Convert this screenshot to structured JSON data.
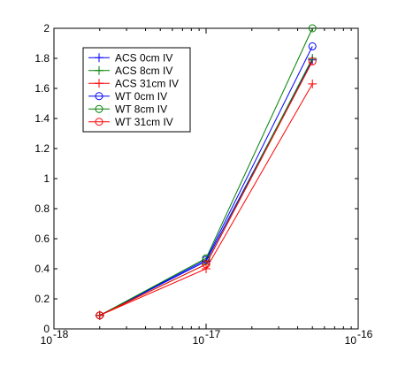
{
  "chart_data": {
    "type": "line",
    "title": "",
    "xlabel": "",
    "ylabel": "",
    "x_scale": "log",
    "xlim": [
      1e-18,
      1e-16
    ],
    "ylim": [
      0,
      2
    ],
    "grid": false,
    "legend_position": "top-left",
    "x_ticks": [
      {
        "value": 1e-18,
        "base": "10",
        "exp": "-18"
      },
      {
        "value": 1e-17,
        "base": "10",
        "exp": "-17"
      },
      {
        "value": 1e-16,
        "base": "10",
        "exp": "-16"
      }
    ],
    "y_ticks": [
      {
        "value": 0,
        "label": "0"
      },
      {
        "value": 0.2,
        "label": "0.2"
      },
      {
        "value": 0.4,
        "label": "0.4"
      },
      {
        "value": 0.6,
        "label": "0.6"
      },
      {
        "value": 0.8,
        "label": "0.8"
      },
      {
        "value": 1.0,
        "label": "1"
      },
      {
        "value": 1.2,
        "label": "1.2"
      },
      {
        "value": 1.4,
        "label": "1.4"
      },
      {
        "value": 1.6,
        "label": "1.6"
      },
      {
        "value": 1.8,
        "label": "1.8"
      },
      {
        "value": 2.0,
        "label": "2"
      }
    ],
    "x": [
      2e-18,
      1e-17,
      5e-17
    ],
    "series": [
      {
        "name": "ACS 0cm IV",
        "color": "#0000ff",
        "marker": "plus",
        "values": [
          0.09,
          0.45,
          1.79
        ]
      },
      {
        "name": "ACS 8cm IV",
        "color": "#008000",
        "marker": "plus",
        "values": [
          0.09,
          0.43,
          1.8
        ]
      },
      {
        "name": "ACS 31cm IV",
        "color": "#ff0000",
        "marker": "plus",
        "values": [
          0.09,
          0.4,
          1.63
        ]
      },
      {
        "name": "WT 0cm IV",
        "color": "#0000ff",
        "marker": "circle",
        "values": [
          0.09,
          0.46,
          1.88
        ]
      },
      {
        "name": "WT 8cm IV",
        "color": "#008000",
        "marker": "circle",
        "values": [
          0.09,
          0.47,
          2.0
        ]
      },
      {
        "name": "WT 31cm IV",
        "color": "#ff0000",
        "marker": "circle",
        "values": [
          0.09,
          0.43,
          1.78
        ]
      }
    ]
  }
}
